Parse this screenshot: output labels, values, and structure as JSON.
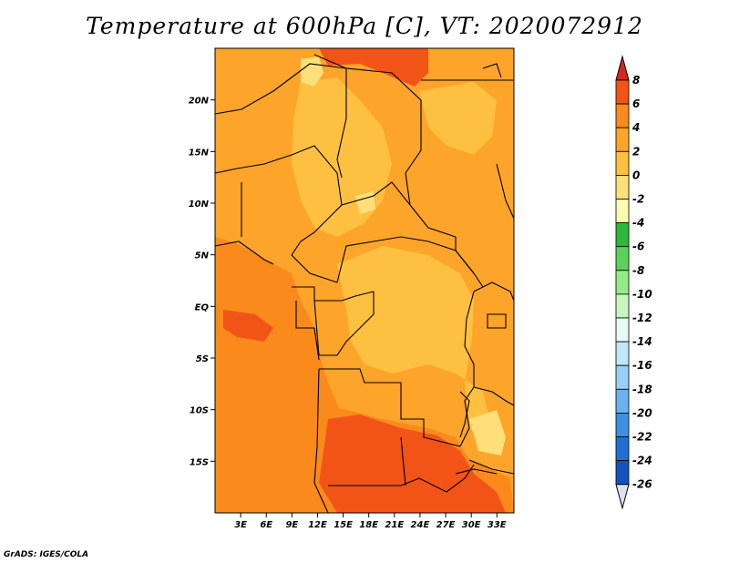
{
  "title": "Temperature at 600hPa [C], VT: 2020072912",
  "credit": "GrADS: IGES/COLA",
  "map": {
    "region": "Central Africa",
    "lon_range": [
      0,
      35
    ],
    "lat_range": [
      -20,
      25
    ],
    "lon_ticks": [
      {
        "value": 3,
        "label": "3E"
      },
      {
        "value": 6,
        "label": "6E"
      },
      {
        "value": 9,
        "label": "9E"
      },
      {
        "value": 12,
        "label": "12E"
      },
      {
        "value": 15,
        "label": "15E"
      },
      {
        "value": 18,
        "label": "18E"
      },
      {
        "value": 21,
        "label": "21E"
      },
      {
        "value": 24,
        "label": "24E"
      },
      {
        "value": 27,
        "label": "27E"
      },
      {
        "value": 30,
        "label": "30E"
      },
      {
        "value": 33,
        "label": "33E"
      }
    ],
    "lat_ticks": [
      {
        "value": 20,
        "label": "20N"
      },
      {
        "value": 15,
        "label": "15N"
      },
      {
        "value": 10,
        "label": "10N"
      },
      {
        "value": 5,
        "label": "5N"
      },
      {
        "value": 0,
        "label": "EQ"
      },
      {
        "value": -5,
        "label": "5S"
      },
      {
        "value": -10,
        "label": "10S"
      },
      {
        "value": -15,
        "label": "15S"
      }
    ]
  },
  "colorbar": {
    "labels": [
      "8",
      "6",
      "4",
      "2",
      "0",
      "-2",
      "-4",
      "-6",
      "-8",
      "-10",
      "-12",
      "-14",
      "-16",
      "-18",
      "-20",
      "-22",
      "-24",
      "-26"
    ],
    "colors": [
      "#e4281c",
      "#f25418",
      "#f98a1b",
      "#fda42a",
      "#fec040",
      "#fedf7a",
      "#fdfbb0",
      "#2fb83a",
      "#5bd35a",
      "#95ea88",
      "#c8f5c0",
      "#e6fbf5",
      "#bfe6fb",
      "#97cff7",
      "#6ab1f1",
      "#3e8fe6",
      "#1f6fd6",
      "#1552c0",
      "#0f3aa3",
      "#0b1f6e"
    ],
    "top_color": "#d9241b",
    "bottom_color": "#dce0f7"
  },
  "regions_colors": {
    "warm_4_6": "#f98a1b",
    "warm_2_4": "#fda42a",
    "warm_0_2": "#fec040",
    "cool_-2_0": "#fedf7a",
    "hot_6_8": "#f25418"
  }
}
